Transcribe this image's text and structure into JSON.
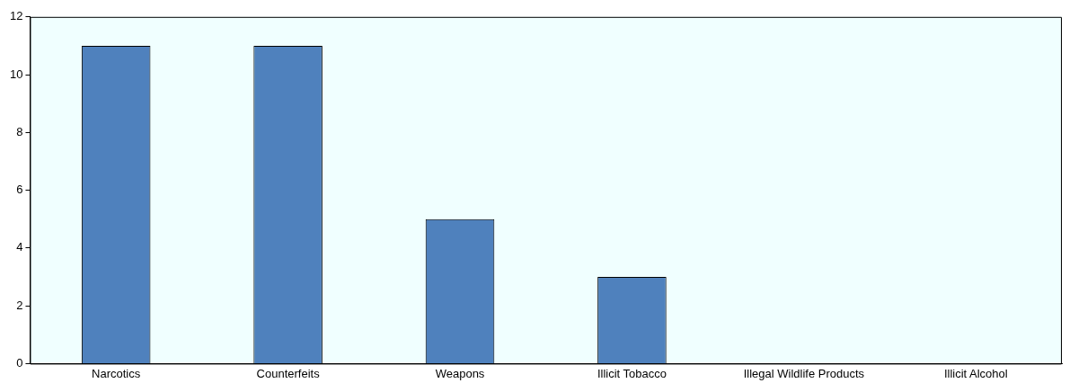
{
  "chart_data": {
    "type": "bar",
    "categories": [
      "Narcotics",
      "Counterfeits",
      "Weapons",
      "Illicit Tobacco",
      "Illegal Wildlife Products",
      "Illicit Alcohol"
    ],
    "values": [
      11,
      11,
      5,
      3,
      0,
      0
    ],
    "color": "#4f81bd",
    "ylim": [
      0,
      12
    ],
    "yticks": [
      0,
      2,
      4,
      6,
      8,
      10,
      12
    ],
    "grid": false,
    "legend": false
  }
}
